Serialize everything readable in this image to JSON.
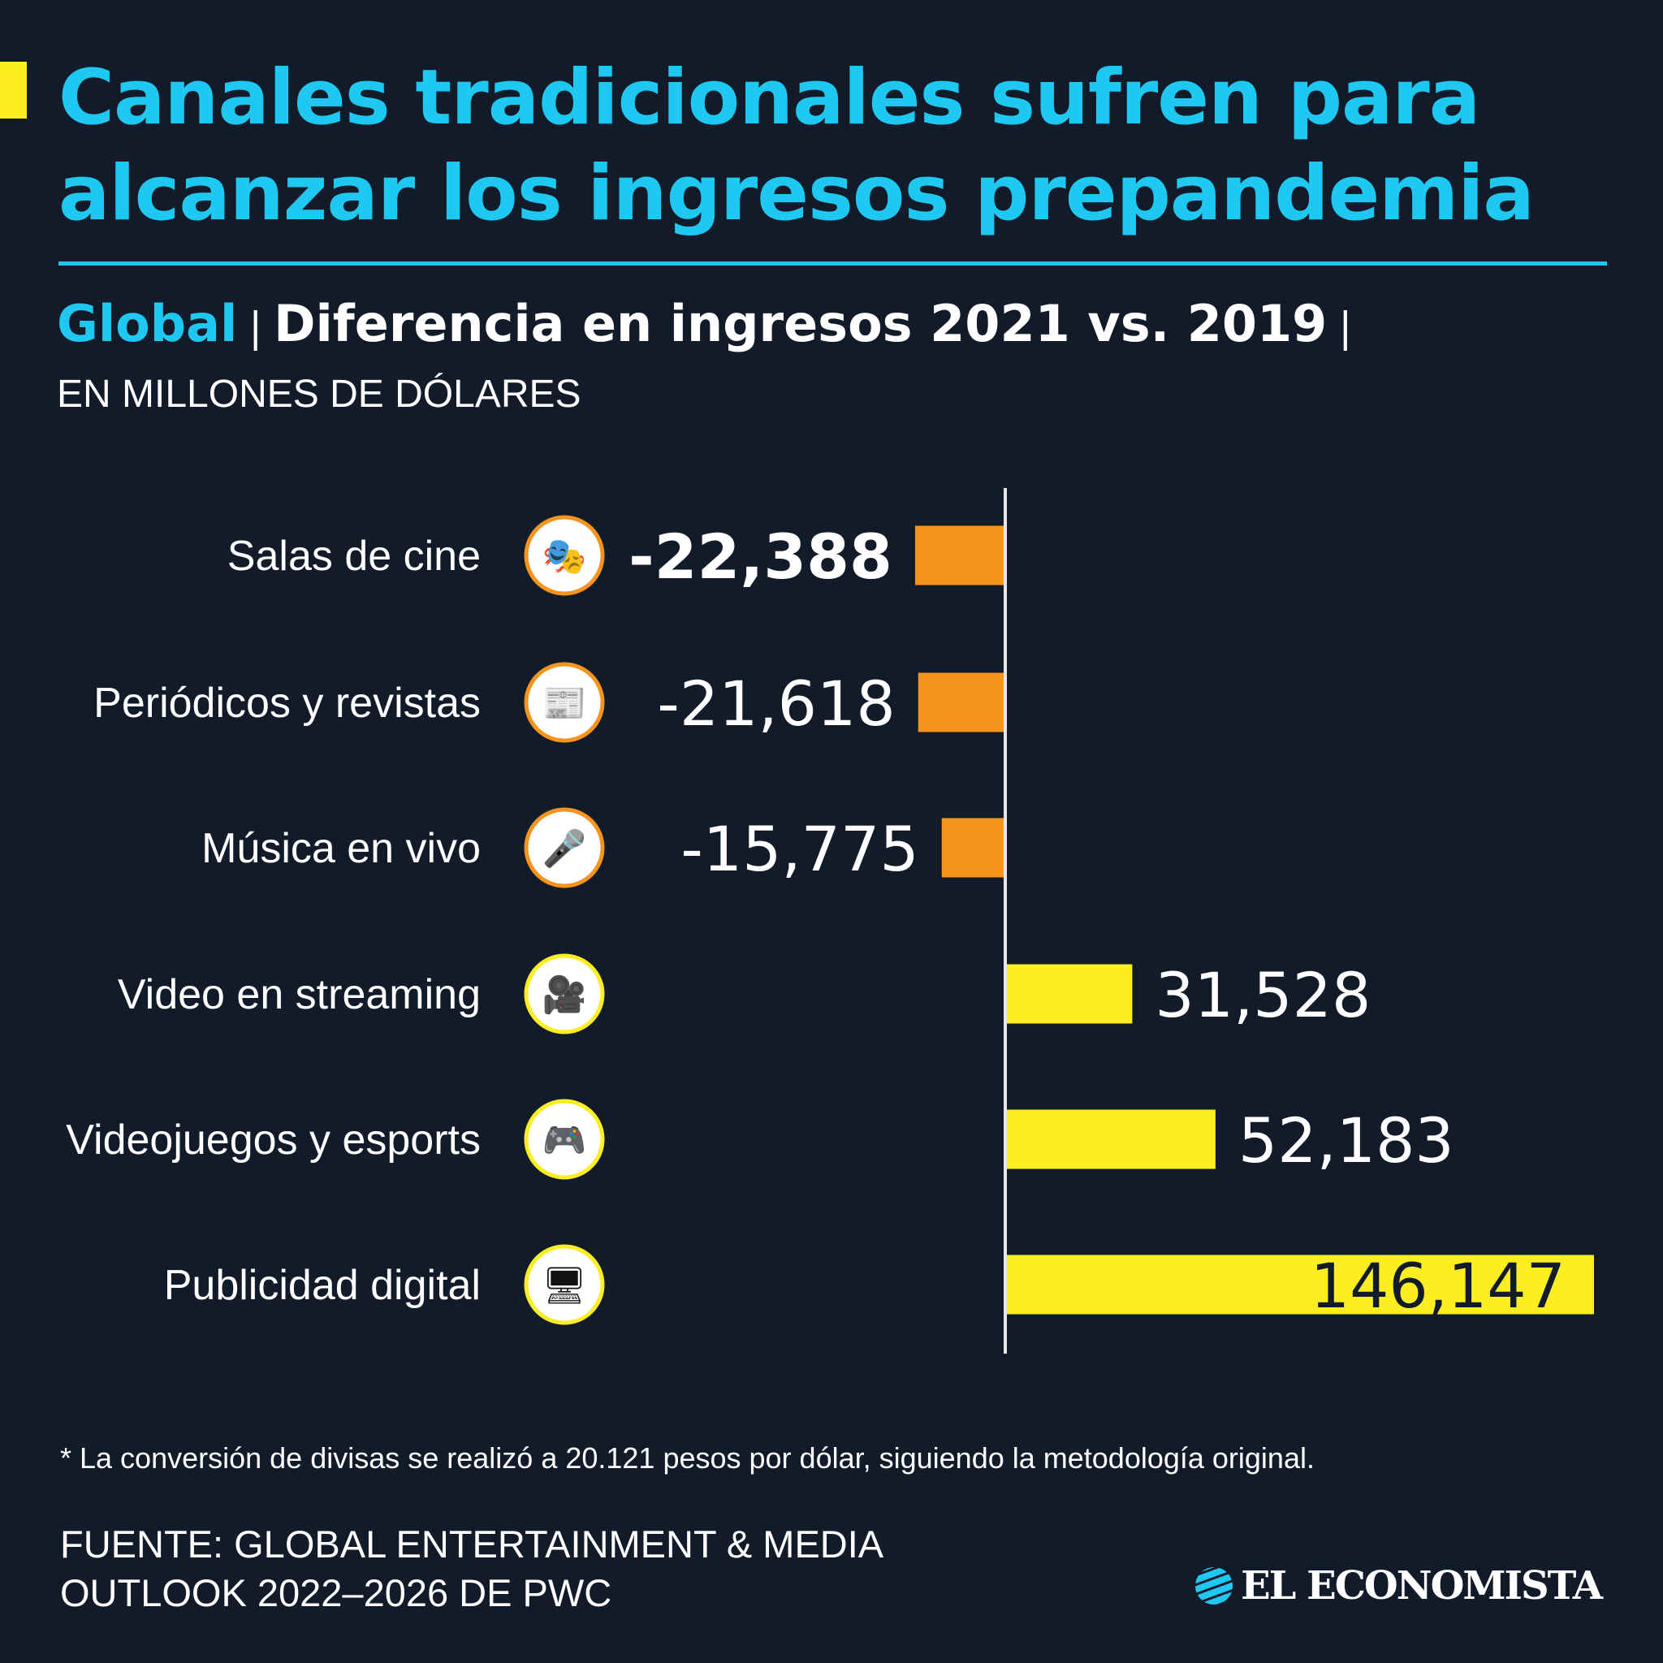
{
  "header": {
    "title_line1": "Canales tradicionales sufren para",
    "title_line2": "alcanzar los ingresos prepandemia",
    "subtitle_region": "Global",
    "subtitle_separator": "|",
    "subtitle_main": "Diferencia en ingresos 2021 vs. 2019",
    "units": "EN MILLONES DE DÓLARES"
  },
  "colors": {
    "background": "#111b29",
    "accent": "#1ec8f0",
    "negative": "#f7941d",
    "positive": "#fcee21",
    "marker": "#fcee21"
  },
  "chart_data": {
    "type": "bar",
    "orientation": "horizontal",
    "categories": [
      "Salas de cine",
      "Periódicos y revistas",
      "Música en vivo",
      "Video en streaming",
      "Videojuegos y esports",
      "Publicidad digital"
    ],
    "values": [
      -22388,
      -21618,
      -15775,
      31528,
      52183,
      146147
    ],
    "value_labels": [
      "-22,388",
      "-21,618",
      "-15,775",
      "31,528",
      "52,183",
      "146,147"
    ],
    "icons": [
      "cinema-icon",
      "newspaper-icon",
      "concert-stage-icon",
      "streaming-video-icon",
      "game-console-icon",
      "digital-ads-icon"
    ],
    "title": "Diferencia en ingresos 2021 vs. 2019",
    "xlabel": "",
    "ylabel": "",
    "grid": false,
    "legend": "none"
  },
  "footer": {
    "note": "* La conversión de divisas se realizó a 20.121 pesos por dólar, siguiendo la metodología original.",
    "source_line1": "FUENTE: GLOBAL ENTERTAINMENT & MEDIA",
    "source_line2": "OUTLOOK 2022–2026 DE PWC",
    "logo_text": "EL ECONOMISTA"
  }
}
